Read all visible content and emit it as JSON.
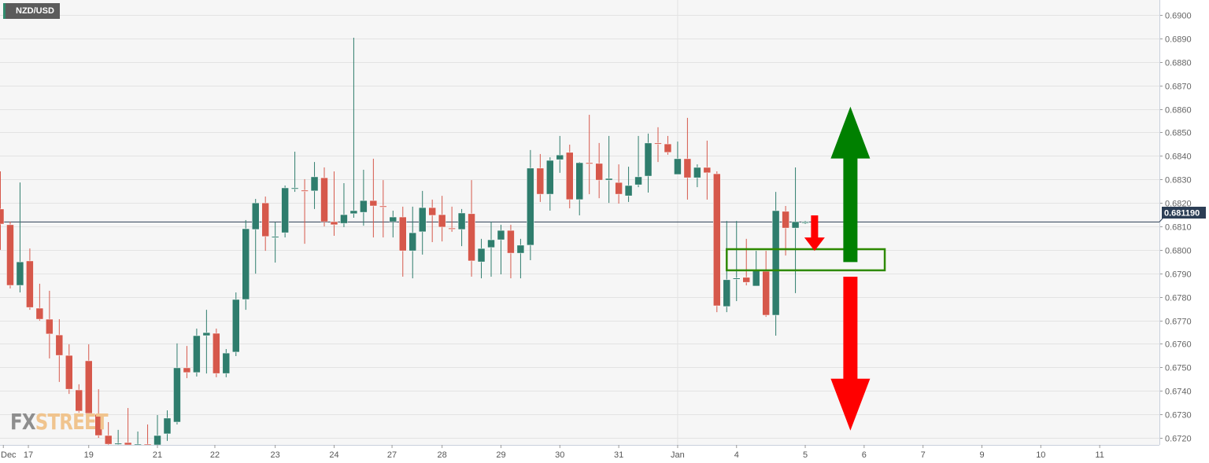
{
  "symbol": "NZD/USD",
  "watermark": {
    "part1": "FX",
    "part2": "STREET"
  },
  "colors": {
    "up": "#2f7d6d",
    "down": "#d6584b",
    "background": "#f6f6f6",
    "grid": "#e3e3e3",
    "price_line": "#2c3e55",
    "box": "#2e8a00",
    "arrow_up": "#008000",
    "arrow_down": "#ff0000"
  },
  "chart_data": {
    "type": "candlestick",
    "title": "NZD/USD",
    "ylim": [
      0.6715,
      0.6905
    ],
    "grid": true,
    "yticks": [
      "0.6900",
      "0.6890",
      "0.6880",
      "0.6870",
      "0.6860",
      "0.6850",
      "0.6840",
      "0.6830",
      "0.6820",
      "0.6810",
      "0.6800",
      "0.6790",
      "0.6780",
      "0.6770",
      "0.6760",
      "0.6750",
      "0.6740",
      "0.6730",
      "0.6720"
    ],
    "last_price_label": "0.681190",
    "last_price": 0.68119,
    "xticks": [
      {
        "label": "Dec",
        "at": 0.3
      },
      {
        "label": "17",
        "at": 2.85
      },
      {
        "label": "19",
        "at": 9
      },
      {
        "label": "21",
        "at": 16
      },
      {
        "label": "22",
        "at": 21.85
      },
      {
        "label": "23",
        "at": 28
      },
      {
        "label": "24",
        "at": 34
      },
      {
        "label": "27",
        "at": 39.9
      },
      {
        "label": "28",
        "at": 45
      },
      {
        "label": "29",
        "at": 51
      },
      {
        "label": "30",
        "at": 57
      },
      {
        "label": "31",
        "at": 63
      },
      {
        "label": "Jan",
        "at": 69
      },
      {
        "label": "4",
        "at": 75
      },
      {
        "label": "5",
        "at": 82
      },
      {
        "label": "6",
        "at": 88
      },
      {
        "label": "7",
        "at": 94
      },
      {
        "label": "9",
        "at": 100
      },
      {
        "label": "10",
        "at": 106
      },
      {
        "label": "11",
        "at": 112
      }
    ],
    "ohlc_columns": [
      "open",
      "high",
      "low",
      "close"
    ],
    "candles": [
      [
        0.68174,
        0.68334,
        0.68,
        0.6811
      ],
      [
        0.68107,
        0.6812,
        0.67836,
        0.67849
      ],
      [
        0.67849,
        0.68287,
        0.67819,
        0.67949
      ],
      [
        0.67953,
        0.68006,
        0.67745,
        0.67755
      ],
      [
        0.67752,
        0.67856,
        0.67699,
        0.67705
      ],
      [
        0.67705,
        0.67826,
        0.67538,
        0.67642
      ],
      [
        0.67638,
        0.67705,
        0.67438,
        0.67551
      ],
      [
        0.67551,
        0.67598,
        0.67387,
        0.67407
      ],
      [
        0.67404,
        0.67428,
        0.67307,
        0.67314
      ],
      [
        0.67528,
        0.67598,
        0.67257,
        0.67304
      ],
      [
        0.673,
        0.67407,
        0.672,
        0.6721
      ],
      [
        0.6721,
        0.67267,
        0.67167,
        0.67173
      ],
      [
        0.67173,
        0.67234,
        0.6717,
        0.67177
      ],
      [
        0.6718,
        0.67327,
        0.67167,
        0.6717
      ],
      [
        0.6717,
        0.67227,
        0.67167,
        0.67173
      ],
      [
        0.67173,
        0.67257,
        0.67167,
        0.6717
      ],
      [
        0.67167,
        0.67297,
        0.67167,
        0.6721
      ],
      [
        0.67217,
        0.67317,
        0.67187,
        0.67284
      ],
      [
        0.67267,
        0.67602,
        0.67257,
        0.67498
      ],
      [
        0.67498,
        0.67591,
        0.67454,
        0.67478
      ],
      [
        0.67478,
        0.67665,
        0.67461,
        0.67635
      ],
      [
        0.67635,
        0.67745,
        0.67474,
        0.67648
      ],
      [
        0.67645,
        0.67665,
        0.67458,
        0.67474
      ],
      [
        0.67474,
        0.67578,
        0.67458,
        0.67561
      ],
      [
        0.67565,
        0.67819,
        0.67548,
        0.67789
      ],
      [
        0.67789,
        0.68127,
        0.67745,
        0.6809
      ],
      [
        0.68087,
        0.68217,
        0.67899,
        0.682
      ],
      [
        0.682,
        0.68227,
        0.67996,
        0.68057
      ],
      [
        0.68053,
        0.68117,
        0.67946,
        0.68057
      ],
      [
        0.68073,
        0.68274,
        0.68053,
        0.68264
      ],
      [
        0.68261,
        0.68418,
        0.68247,
        0.68264
      ],
      [
        0.68254,
        0.68301,
        0.68026,
        0.68251
      ],
      [
        0.68251,
        0.68374,
        0.68174,
        0.68311
      ],
      [
        0.68307,
        0.68351,
        0.681,
        0.6812
      ],
      [
        0.6812,
        0.68334,
        0.6806,
        0.68107
      ],
      [
        0.68113,
        0.68284,
        0.68097,
        0.6815
      ],
      [
        0.68154,
        0.68903,
        0.68137,
        0.68167
      ],
      [
        0.6816,
        0.68341,
        0.68103,
        0.6821
      ],
      [
        0.6821,
        0.68388,
        0.68053,
        0.68187
      ],
      [
        0.68187,
        0.68297,
        0.68053,
        0.68184
      ],
      [
        0.6812,
        0.68167,
        0.68053,
        0.6814
      ],
      [
        0.6814,
        0.68184,
        0.67886,
        0.67996
      ],
      [
        0.67996,
        0.68184,
        0.67879,
        0.68073
      ],
      [
        0.68077,
        0.68251,
        0.6798,
        0.6818
      ],
      [
        0.6818,
        0.68214,
        0.68033,
        0.68147
      ],
      [
        0.6815,
        0.6823,
        0.68036,
        0.68097
      ],
      [
        0.68093,
        0.68184,
        0.68077,
        0.6809
      ],
      [
        0.68087,
        0.68174,
        0.68016,
        0.68157
      ],
      [
        0.68154,
        0.68297,
        0.67886,
        0.67953
      ],
      [
        0.67949,
        0.68047,
        0.67879,
        0.68006
      ],
      [
        0.6801,
        0.6812,
        0.67886,
        0.68043
      ],
      [
        0.68043,
        0.68107,
        0.67896,
        0.68083
      ],
      [
        0.68083,
        0.68107,
        0.67879,
        0.67986
      ],
      [
        0.67986,
        0.68047,
        0.67879,
        0.6802
      ],
      [
        0.6802,
        0.68425,
        0.67956,
        0.68348
      ],
      [
        0.68348,
        0.68408,
        0.68204,
        0.68237
      ],
      [
        0.68237,
        0.68394,
        0.68167,
        0.68381
      ],
      [
        0.68384,
        0.68485,
        0.68328,
        0.68404
      ],
      [
        0.68415,
        0.68448,
        0.68177,
        0.68214
      ],
      [
        0.68214,
        0.68374,
        0.68147,
        0.68371
      ],
      [
        0.68371,
        0.68575,
        0.68237,
        0.68368
      ],
      [
        0.68368,
        0.68455,
        0.6822,
        0.68297
      ],
      [
        0.68297,
        0.68485,
        0.682,
        0.68304
      ],
      [
        0.68287,
        0.68364,
        0.68197,
        0.68237
      ],
      [
        0.6823,
        0.68354,
        0.68204,
        0.68274
      ],
      [
        0.68277,
        0.68485,
        0.68267,
        0.68311
      ],
      [
        0.68314,
        0.68495,
        0.68244,
        0.68455
      ],
      [
        0.68455,
        0.68522,
        0.68374,
        0.68451
      ],
      [
        0.68451,
        0.68485,
        0.68405,
        0.68415
      ],
      [
        0.68321,
        0.68461,
        0.68321,
        0.68388
      ],
      [
        0.68388,
        0.68562,
        0.68214,
        0.68307
      ],
      [
        0.68307,
        0.68364,
        0.68267,
        0.68351
      ],
      [
        0.68351,
        0.68465,
        0.68214,
        0.68328
      ],
      [
        0.68324,
        0.68334,
        0.67735,
        0.67762
      ],
      [
        0.67759,
        0.68123,
        0.67735,
        0.67873
      ],
      [
        0.67879,
        0.68123,
        0.67782,
        0.6788
      ],
      [
        0.67883,
        0.68047,
        0.67849,
        0.67862
      ],
      [
        0.67846,
        0.67996,
        0.67846,
        0.67916
      ],
      [
        0.67909,
        0.67996,
        0.67715,
        0.67722
      ],
      [
        0.67722,
        0.68247,
        0.67635,
        0.68167
      ],
      [
        0.68164,
        0.68187,
        0.67976,
        0.68093
      ],
      [
        0.68093,
        0.68351,
        0.67816,
        0.6812
      ],
      [
        0.68117,
        0.68123,
        0.6811,
        0.68119
      ]
    ],
    "annotations": {
      "zone_box": {
        "from": 74,
        "to": 90.1,
        "top": 0.68003,
        "bottom": 0.67913
      },
      "arrow_up_big": {
        "at": 86.6,
        "from": 0.67948,
        "to": 0.6861
      },
      "arrow_down_big": {
        "at": 86.6,
        "from": 0.67886,
        "to": 0.67231
      },
      "arrow_down_small": {
        "at": 82.95,
        "from": 0.68147,
        "to": 0.67996
      }
    }
  }
}
